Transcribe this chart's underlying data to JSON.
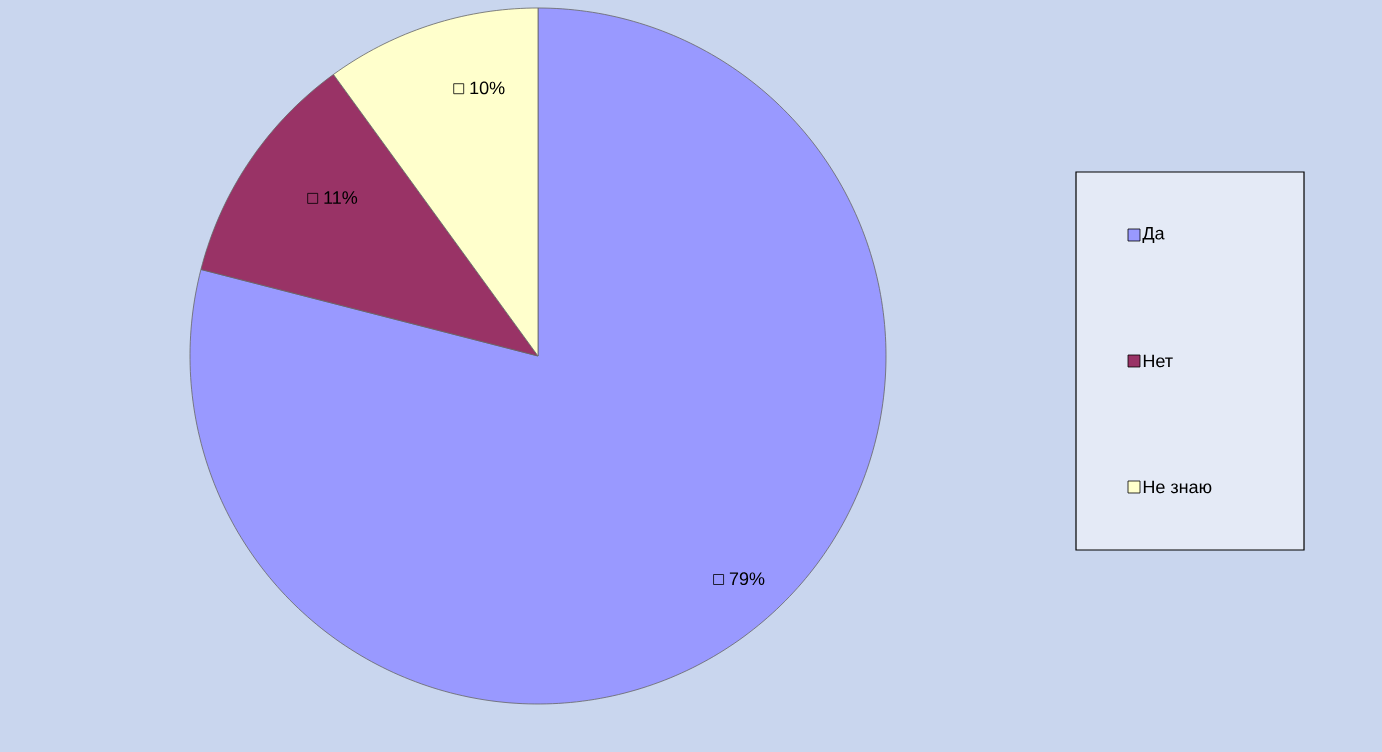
{
  "chart_data": {
    "type": "pie",
    "categories": [
      "Да",
      "Нет",
      "Не знаю"
    ],
    "values": [
      79,
      11,
      10
    ],
    "colors": [
      "#9999ff",
      "#993366",
      "#ffffcc"
    ],
    "value_labels": [
      "79%",
      "11%",
      "10%"
    ],
    "legend": "right"
  }
}
